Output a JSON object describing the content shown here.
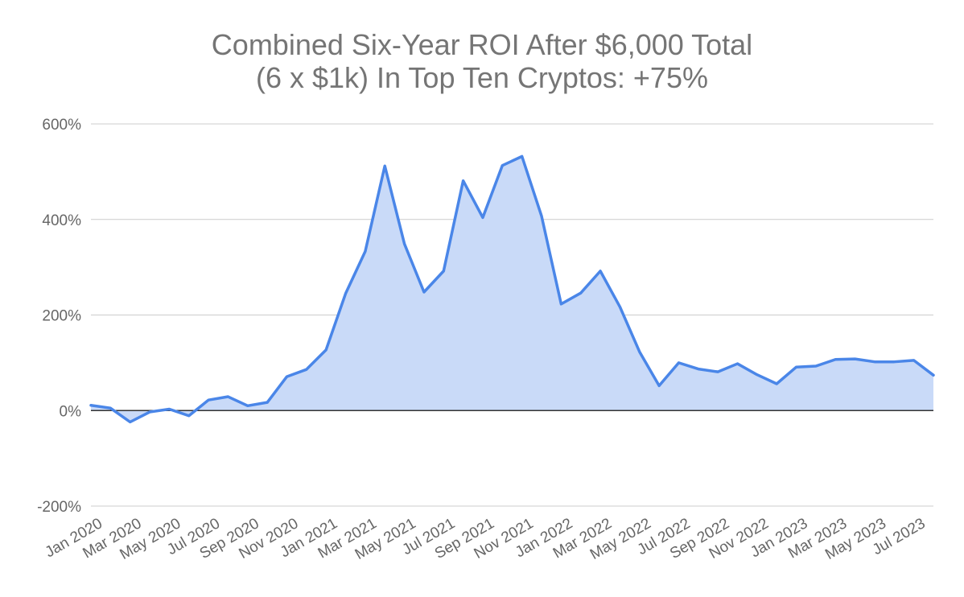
{
  "chart_data": {
    "type": "area",
    "title_lines": [
      "Combined Six-Year ROI After $6,000 Total",
      "(6 x $1k) In Top Ten Cryptos: +75%"
    ],
    "ylim": [
      -200,
      600
    ],
    "yticks": [
      -200,
      0,
      200,
      400,
      600
    ],
    "ytick_labels": [
      "-200%",
      "0%",
      "200%",
      "400%",
      "600%"
    ],
    "grid": true,
    "legend": "none",
    "colors": {
      "line": "#4a86e8",
      "fill": "#c9daf8",
      "grid": "#cccccc",
      "baseline": "#333333",
      "title": "#757575",
      "tick": "#666666"
    },
    "x_tick_labels": [
      "Jan 2020",
      "Mar 2020",
      "May 2020",
      "Jul 2020",
      "Sep 2020",
      "Nov 2020",
      "Jan 2021",
      "Mar 2021",
      "May 2021",
      "Jul 2021",
      "Sep 2021",
      "Nov 2021",
      "Jan 2022",
      "Mar 2022",
      "May 2022",
      "Jul 2022",
      "Sep 2022",
      "Nov 2022",
      "Jan 2023",
      "Mar 2023",
      "May 2023",
      "Jul 2023"
    ],
    "x": [
      "Jan 2020",
      "Feb 2020",
      "Mar 2020",
      "Apr 2020",
      "May 2020",
      "Jun 2020",
      "Jul 2020",
      "Aug 2020",
      "Sep 2020",
      "Oct 2020",
      "Nov 2020",
      "Dec 2020",
      "Jan 2021",
      "Feb 2021",
      "Mar 2021",
      "Apr 2021",
      "May 2021",
      "Jun 2021",
      "Jul 2021",
      "Aug 2021",
      "Sep 2021",
      "Oct 2021",
      "Nov 2021",
      "Dec 2021",
      "Jan 2022",
      "Feb 2022",
      "Mar 2022",
      "Apr 2022",
      "May 2022",
      "Jun 2022",
      "Jul 2022",
      "Aug 2022",
      "Sep 2022",
      "Oct 2022",
      "Nov 2022",
      "Dec 2022",
      "Jan 2023",
      "Feb 2023",
      "Mar 2023",
      "Apr 2023",
      "May 2023",
      "Jun 2023",
      "Jul 2023",
      "Aug 2023"
    ],
    "series": [
      {
        "values": [
          11,
          5,
          -24,
          -3,
          3,
          -11,
          22,
          29,
          10,
          17,
          71,
          86,
          127,
          245,
          333,
          512,
          349,
          248,
          292,
          481,
          404,
          513,
          532,
          407,
          223,
          246,
          292,
          217,
          123,
          52,
          100,
          87,
          81,
          98,
          75,
          56,
          91,
          93,
          107,
          108,
          102,
          102,
          105,
          74
        ]
      }
    ]
  }
}
